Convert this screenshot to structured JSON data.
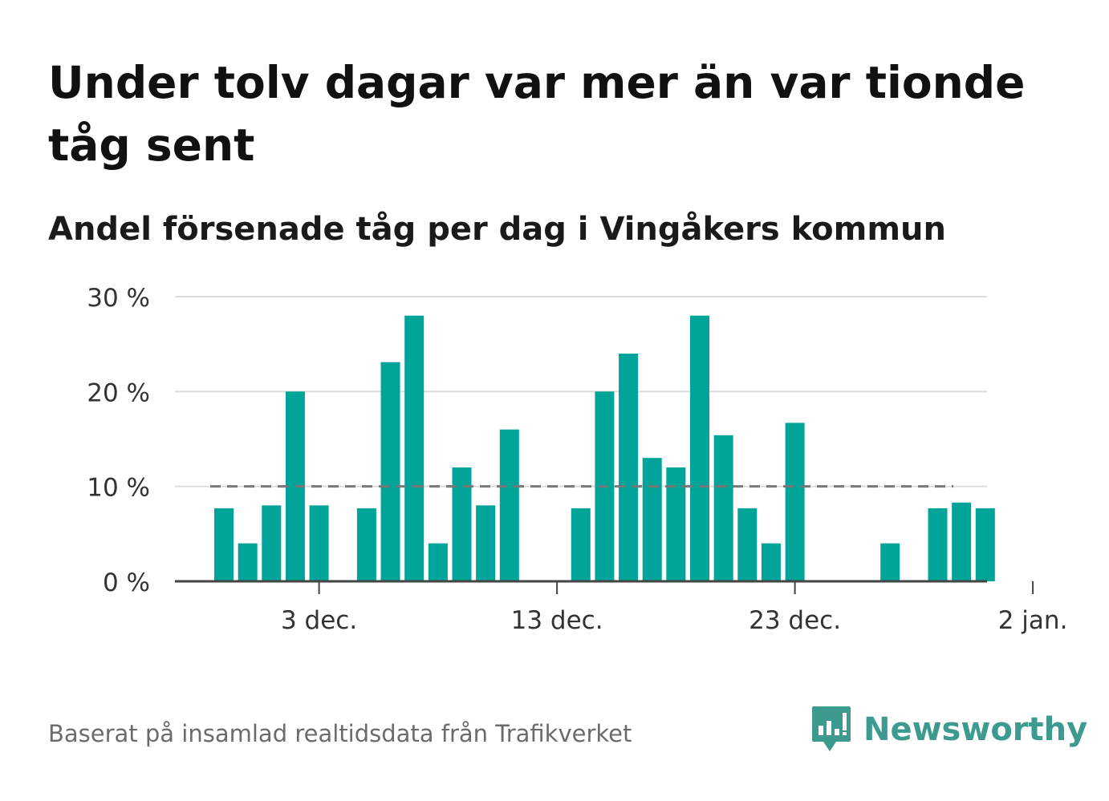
{
  "title": "Under tolv dagar var mer än var tionde tåg sent",
  "subtitle": "Andel försenade tåg per dag i Vingåkers kommun",
  "source": "Baserat på insamlad realtidsdata från Trafikverket",
  "brand": {
    "name": "Newsworthy",
    "icon": "newsworthy-logo-icon",
    "color": "#3c9a8f"
  },
  "chart_data": {
    "type": "bar",
    "bar_color": "#00a498",
    "reference_line": {
      "value": 10,
      "style": "dashed",
      "color": "#777777"
    },
    "x": [
      "2024-11-29",
      "2024-11-30",
      "2024-12-01",
      "2024-12-02",
      "2024-12-03",
      "2024-12-04",
      "2024-12-05",
      "2024-12-06",
      "2024-12-07",
      "2024-12-08",
      "2024-12-09",
      "2024-12-10",
      "2024-12-11",
      "2024-12-12",
      "2024-12-13",
      "2024-12-14",
      "2024-12-15",
      "2024-12-16",
      "2024-12-17",
      "2024-12-18",
      "2024-12-19",
      "2024-12-20",
      "2024-12-21",
      "2024-12-22",
      "2024-12-23",
      "2024-12-24",
      "2024-12-25",
      "2024-12-26",
      "2024-12-27",
      "2024-12-28",
      "2024-12-29",
      "2024-12-30",
      "2024-12-31",
      "2025-01-01"
    ],
    "values": [
      7.7,
      4.0,
      8.0,
      20.0,
      8.0,
      null,
      7.7,
      23.1,
      28.0,
      4.0,
      12.0,
      8.0,
      16.0,
      null,
      null,
      7.7,
      20.0,
      24.0,
      13.0,
      12.0,
      28.0,
      15.4,
      7.7,
      4.0,
      16.7,
      null,
      null,
      null,
      4.0,
      null,
      7.7,
      8.3,
      7.7,
      null
    ],
    "xtick_labels": [
      {
        "x": "2024-12-03",
        "label": "3 dec."
      },
      {
        "x": "2024-12-13",
        "label": "13 dec."
      },
      {
        "x": "2024-12-23",
        "label": "23 dec."
      },
      {
        "x": "2025-01-02",
        "label": "2 jan."
      }
    ],
    "yticks": [
      0,
      10,
      20,
      30
    ],
    "ytick_labels": [
      "0 %",
      "10 %",
      "20 %",
      "30 %"
    ],
    "ylim": [
      0,
      30
    ],
    "grid": true,
    "legend": "none"
  }
}
